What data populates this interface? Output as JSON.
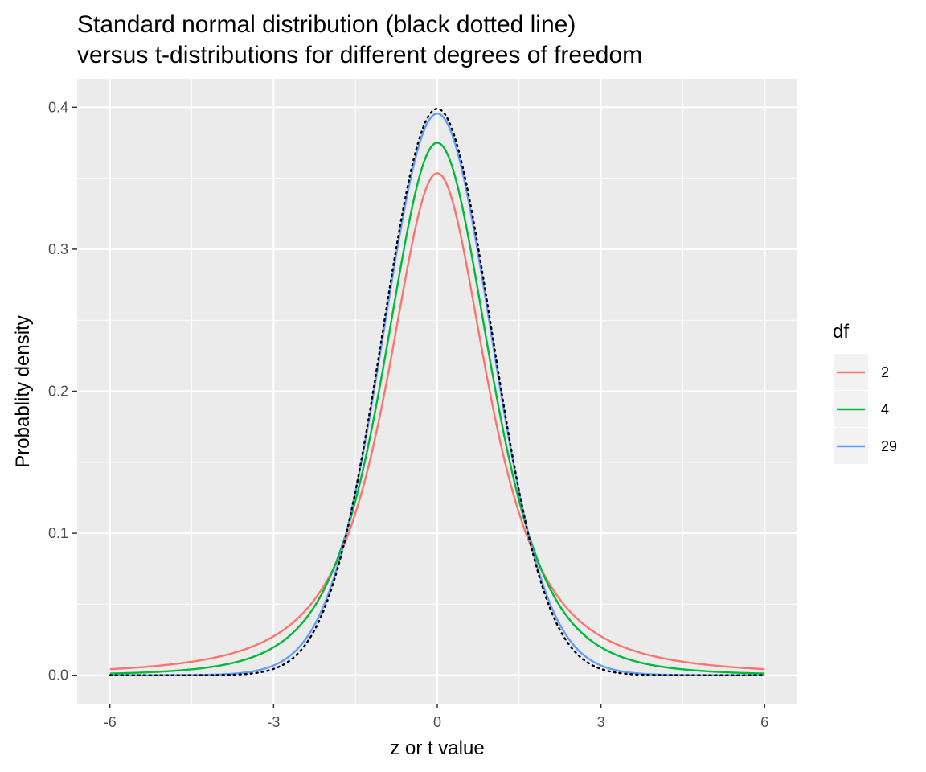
{
  "chart_data": {
    "type": "line",
    "title_line1": "Standard normal distribution (black dotted line)",
    "title_line2": "versus t-distributions for different degrees of freedom",
    "xlabel": "z or t value",
    "ylabel": "Probablity density",
    "xlim": [
      -6.6,
      6.6
    ],
    "ylim": [
      -0.02,
      0.42
    ],
    "x_ticks": [
      -6,
      -3,
      0,
      3,
      6
    ],
    "x_tick_labels": [
      "-6",
      "-3",
      "0",
      "3",
      "6"
    ],
    "y_ticks": [
      0.0,
      0.1,
      0.2,
      0.3,
      0.4
    ],
    "y_tick_labels": [
      "0.0",
      "0.1",
      "0.2",
      "0.3",
      "0.4"
    ],
    "grid": true,
    "legend": {
      "title": "df",
      "position": "right"
    },
    "x_range": [
      -6,
      6
    ],
    "series": [
      {
        "name": "2",
        "df": 2,
        "color": "#F8766D",
        "x": [
          -6,
          -4,
          -3,
          -2,
          -1,
          0,
          1,
          2,
          3,
          4,
          6
        ],
        "y": [
          0.0042,
          0.0131,
          0.0275,
          0.068,
          0.1925,
          0.3536,
          0.1925,
          0.068,
          0.0275,
          0.0131,
          0.0042
        ]
      },
      {
        "name": "4",
        "df": 4,
        "color": "#00BA38",
        "x": [
          -6,
          -4,
          -3,
          -2,
          -1,
          0,
          1,
          2,
          3,
          4,
          6
        ],
        "y": [
          0.0014,
          0.0067,
          0.0197,
          0.0663,
          0.2147,
          0.375,
          0.2147,
          0.0663,
          0.0197,
          0.0067,
          0.0014
        ]
      },
      {
        "name": "29",
        "df": 29,
        "color": "#619CFF",
        "x": [
          -6,
          -4,
          -3,
          -2,
          -1,
          0,
          1,
          2,
          3,
          4,
          6
        ],
        "y": [
          0.0,
          0.0004,
          0.0061,
          0.0557,
          0.2386,
          0.3956,
          0.2386,
          0.0557,
          0.0061,
          0.0004,
          0.0
        ]
      }
    ],
    "reference": {
      "kind": "standard-normal",
      "color": "#000000",
      "style": "dotted",
      "x": [
        -6,
        -4,
        -3,
        -2,
        -1,
        0,
        1,
        2,
        3,
        4,
        6
      ],
      "y": [
        0.0,
        0.0001,
        0.0044,
        0.054,
        0.242,
        0.3989,
        0.242,
        0.054,
        0.0044,
        0.0001,
        0.0
      ]
    }
  }
}
